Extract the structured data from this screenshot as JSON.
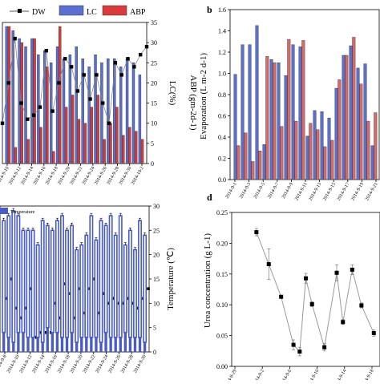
{
  "panels": {
    "a_letter": "",
    "b_letter": "b",
    "c_letter": "",
    "d_letter": "d"
  },
  "chart_data": [
    {
      "panel": "a",
      "type": "bar",
      "legend": [
        "DW",
        "LC",
        "ABP"
      ],
      "ylabel": "LC(%)",
      "ylim": [
        0,
        35
      ],
      "yticks": [
        0,
        5,
        10,
        15,
        20,
        25,
        30,
        35
      ],
      "xticklabels": [
        "2014-9-10",
        "2014-9-12",
        "2014-9-14",
        "2014-9-16",
        "2014-9-18",
        "2014-9-20",
        "2014-9-22",
        "2014-9-24",
        "2014-9-26",
        "2014-9-28",
        "2014-9-30",
        "2014-10-2"
      ],
      "lc_values": [
        34,
        33,
        31,
        29,
        31,
        27,
        28,
        25,
        29,
        26,
        27,
        29,
        26,
        24,
        27,
        25,
        26,
        26,
        24,
        26,
        25,
        22
      ],
      "abp_values": [
        34,
        4,
        30,
        6,
        31,
        9,
        24,
        3,
        34,
        14,
        17,
        11,
        10,
        14,
        17,
        6,
        10,
        14,
        7,
        9,
        8,
        6
      ],
      "dw_values": [
        10,
        20,
        31,
        15,
        11,
        12,
        14,
        28,
        13,
        20,
        26,
        24,
        18,
        22,
        16,
        22,
        15,
        10,
        25,
        22,
        26,
        24,
        27,
        29
      ],
      "colors": {
        "lc": "#5a6fce",
        "abp": "#d93a3a",
        "dw": "#000000"
      }
    },
    {
      "panel": "b",
      "type": "bar",
      "ylabel_left": "ABP (gm-2d-1)",
      "ylabel_right": "Evaporation (L m-2 d-1)",
      "ylim": [
        0,
        1.6
      ],
      "yticks": [
        "0.0",
        "0.2",
        "0.4",
        "0.6",
        "0.8",
        "1.0",
        "1.2",
        "1.4",
        "1.6"
      ],
      "xticklabels": [
        "2014-9-1",
        "2014-9-3",
        "2014-9-5",
        "2014-9-7",
        "2014-9-9",
        "2014-9-11",
        "2014-9-13",
        "2014-9-15",
        "2014-9-17",
        "2014-9-19",
        "2014-9-21"
      ],
      "blue_values": [
        0.99,
        1.27,
        1.27,
        1.45,
        0.33,
        1.13,
        1.1,
        0.98,
        1.27,
        1.25,
        0.41,
        0.65,
        0.64,
        0.58,
        0.86,
        1.17,
        1.26,
        1.05,
        1.09,
        0.32
      ],
      "red_values": [
        0.32,
        0.44,
        0.17,
        0.27,
        1.16,
        1.1,
        0.5,
        1.32,
        0.55,
        1.31,
        0.53,
        0.47,
        0.31,
        0.37,
        0.94,
        1.17,
        1.34,
        0.9,
        0.55,
        0.63
      ],
      "colors": {
        "blue": "#5a6fce",
        "red": "#d96a6a"
      }
    },
    {
      "panel": "c",
      "type": "bar",
      "legend": [
        "Temperature"
      ],
      "ylabel": "Temperature (℃)",
      "ylim": [
        0,
        30
      ],
      "yticks": [
        0,
        5,
        10,
        15,
        20,
        25,
        30
      ],
      "xticklabels": [
        "2014-9-8",
        "2014-9-10",
        "2014-9-12",
        "2014-9-14",
        "2014-9-16",
        "2014-9-18",
        "2014-9-20",
        "2014-9-22",
        "2014-9-24",
        "2014-9-26",
        "2014-9-28",
        "2014-9-30"
      ],
      "upper_values": [
        27,
        28,
        29,
        28,
        25,
        25,
        25,
        22,
        27,
        26,
        25,
        27,
        28,
        25,
        26,
        21,
        22,
        24,
        28,
        23,
        27,
        26,
        28,
        24,
        28,
        22,
        25,
        21,
        27,
        24
      ],
      "lower_values": [
        4,
        3,
        2,
        4,
        4,
        3,
        3,
        3,
        2,
        5,
        4,
        4,
        3,
        3,
        4,
        2,
        3,
        3,
        3,
        3,
        2,
        4,
        3,
        3,
        3,
        4,
        3,
        3,
        3,
        2
      ],
      "mean_values": [
        11,
        15,
        9,
        7,
        9,
        13,
        3,
        4,
        4,
        4,
        10,
        7,
        14,
        12,
        7,
        13,
        8,
        13,
        15,
        8,
        12,
        10,
        11,
        10,
        10,
        11,
        10,
        9,
        11,
        13
      ],
      "colors": {
        "bar": "#4a5bc4"
      }
    },
    {
      "panel": "d",
      "type": "line",
      "ylabel": "Urea concentration (g L-1)",
      "ylim": [
        0,
        0.25
      ],
      "yticks": [
        "0.00",
        "0.05",
        "0.10",
        "0.15",
        "0.20",
        "0.25"
      ],
      "xticklabels": [
        "2014-8-29",
        "2014-9-2",
        "2014-9-6",
        "2014-9-10",
        "2014-9-14",
        "2014-9-18"
      ],
      "x": [
        4,
        6,
        8,
        10,
        11,
        12,
        13,
        15,
        17,
        18,
        19.5,
        21,
        23
      ],
      "y": [
        0.218,
        0.166,
        0.113,
        0.035,
        0.024,
        0.143,
        0.101,
        0.031,
        0.152,
        0.072,
        0.157,
        0.099,
        0.054
      ],
      "err": [
        0.006,
        0.025,
        0.0,
        0.008,
        0.007,
        0.008,
        0.004,
        0.006,
        0.013,
        0.004,
        0.008,
        0.004,
        0.005
      ],
      "xlim": [
        0,
        24
      ],
      "colors": {
        "line": "#9a9a9a",
        "marker": "#000000"
      }
    }
  ]
}
